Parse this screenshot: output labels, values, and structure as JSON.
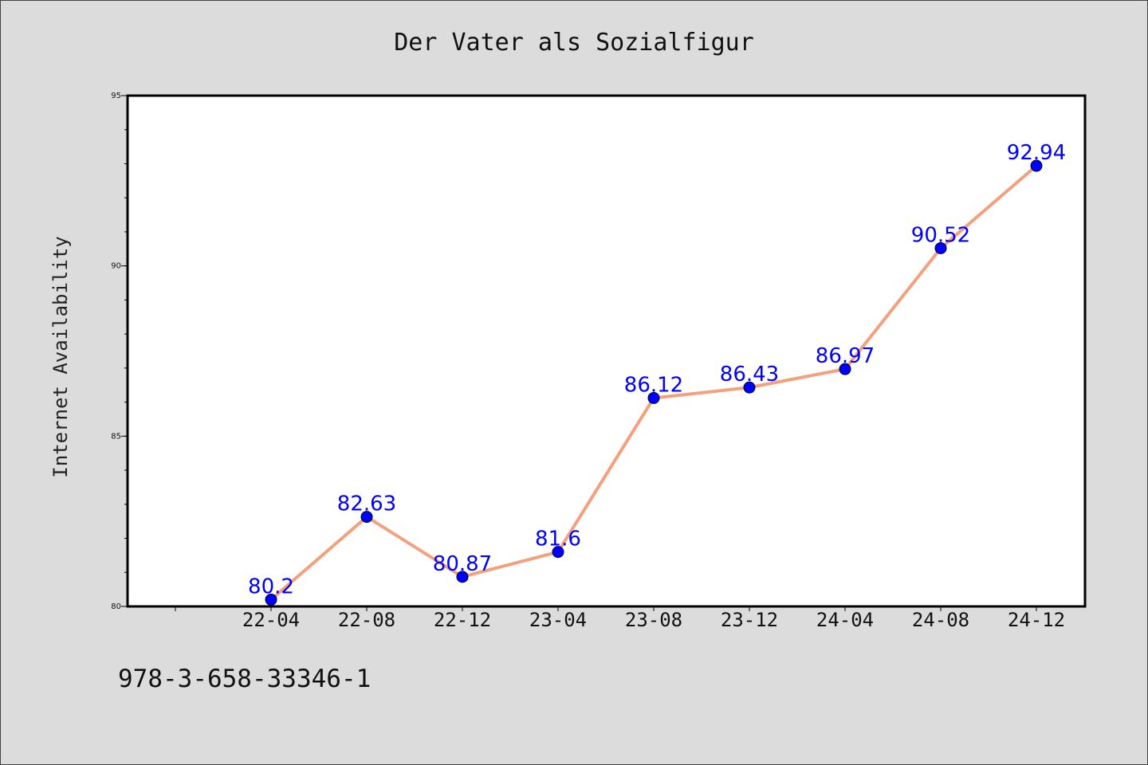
{
  "chart_data": {
    "type": "line",
    "title": "Der Vater als Sozialfigur",
    "xlabel": "",
    "ylabel": "Internet Availability",
    "categories": [
      "22-04",
      "22-08",
      "22-12",
      "23-04",
      "23-08",
      "23-12",
      "24-04",
      "24-08",
      "24-12"
    ],
    "series": [
      {
        "values": [
          80.2,
          82.63,
          80.87,
          81.6,
          86.12,
          86.43,
          86.97,
          90.52,
          92.94
        ]
      }
    ],
    "data_labels": [
      "80.2",
      "82.63",
      "80.87",
      "81.6",
      "86.12",
      "86.43",
      "86.97",
      "90.52",
      "92.94"
    ],
    "ylim": [
      80,
      95
    ],
    "yticks": [
      80,
      85,
      90,
      95
    ],
    "grid": false,
    "line_color": "#f4a07c",
    "marker_color": "#0000ff",
    "label_color": "#0000ff"
  },
  "footer_text": "978-3-658-33346-1"
}
